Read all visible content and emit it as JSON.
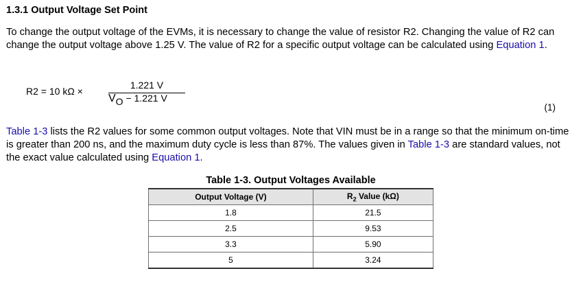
{
  "section": {
    "heading": "1.3.1 Output Voltage Set Point"
  },
  "para1": {
    "text_a": "To change the output voltage of the EVMs, it is necessary to change the value of resistor R2. Changing the value of R2 can change the output voltage above 1.25 V. The value of R2 for a specific output voltage can be calculated using ",
    "link": "Equation 1",
    "text_b": "."
  },
  "equation": {
    "lhs": "R2 = 10 kΩ ×",
    "numerator": "1.221 V",
    "den_v": "V",
    "den_sub": "O",
    "den_rest": " − 1.221 V",
    "number": "(1)"
  },
  "para2": {
    "link1": "Table 1-3",
    "text_a": " lists the R2 values for some common output voltages. Note that VIN must be in a range so that the minimum on-time is greater than 200 ns, and the maximum duty cycle is less than 87%. The values given in ",
    "link2": "Table 1-3",
    "text_b": " are standard values, not the exact value calculated using ",
    "link3": "Equation 1",
    "text_c": "."
  },
  "table": {
    "caption": "Table 1-3. Output Voltages Available",
    "header_col1": "Output Voltage (V)",
    "header_col2_main": "R",
    "header_col2_sub": "2",
    "header_col2_rest": " Value (kΩ)",
    "rows": [
      {
        "voltage": "1.8",
        "r2": "21.5"
      },
      {
        "voltage": "2.5",
        "r2": "9.53"
      },
      {
        "voltage": "3.3",
        "r2": "5.90"
      },
      {
        "voltage": "5",
        "r2": "3.24"
      }
    ]
  }
}
